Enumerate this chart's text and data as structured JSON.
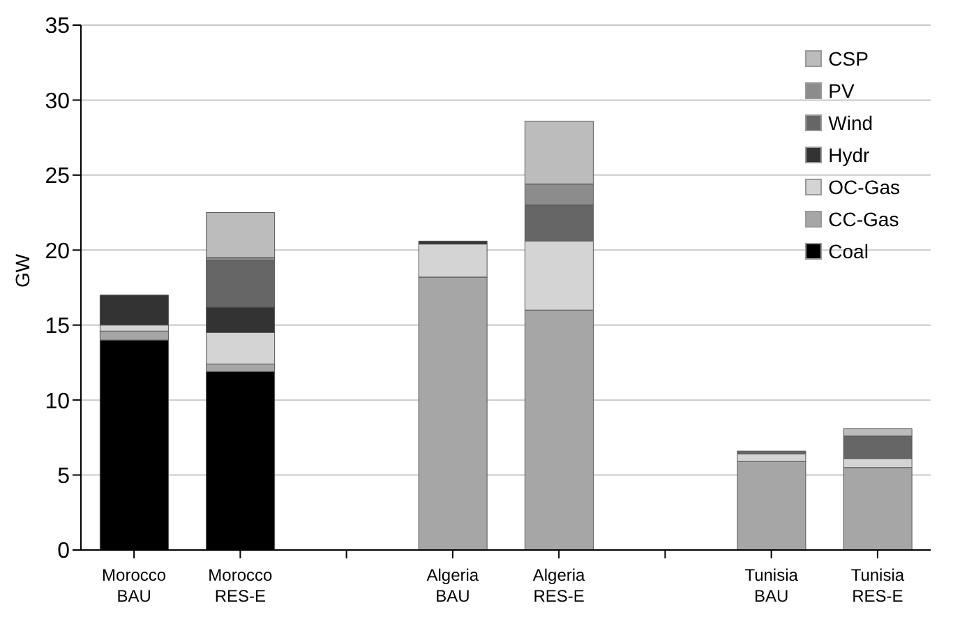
{
  "chart_data": {
    "type": "bar",
    "stacked": true,
    "ylabel": "GW",
    "categories": [
      "Morocco BAU",
      "Morocco RES-E",
      null,
      "Algeria BAU",
      "Algeria RES-E",
      null,
      "Tunisia BAU",
      "Tunisia RES-E"
    ],
    "series": [
      {
        "name": "Coal",
        "color": "#000000",
        "values": [
          14.0,
          11.9,
          null,
          0,
          0,
          null,
          0,
          0
        ]
      },
      {
        "name": "CC-Gas",
        "color": "#a6a6a6",
        "values": [
          0.6,
          0.5,
          null,
          18.2,
          16.0,
          null,
          5.9,
          5.5
        ]
      },
      {
        "name": "OC-Gas",
        "color": "#d4d4d4",
        "values": [
          0.4,
          2.1,
          null,
          2.2,
          4.6,
          null,
          0.5,
          0.6
        ]
      },
      {
        "name": "Hydr",
        "color": "#333333",
        "values": [
          2.0,
          1.7,
          null,
          0.2,
          0,
          null,
          0,
          0
        ]
      },
      {
        "name": "Wind",
        "color": "#666666",
        "values": [
          0,
          3.1,
          null,
          0,
          2.4,
          null,
          0.2,
          1.5
        ]
      },
      {
        "name": "PV",
        "color": "#8c8c8c",
        "values": [
          0,
          0.2,
          null,
          0,
          1.4,
          null,
          0,
          0
        ]
      },
      {
        "name": "CSP",
        "color": "#bcbcbc",
        "values": [
          0,
          3.0,
          null,
          0,
          4.2,
          null,
          0,
          0.5
        ]
      }
    ],
    "ylim": [
      0,
      35
    ],
    "yticks": [
      0,
      5,
      10,
      15,
      20,
      25,
      30,
      35
    ],
    "grid": "y",
    "legend": "top right"
  }
}
